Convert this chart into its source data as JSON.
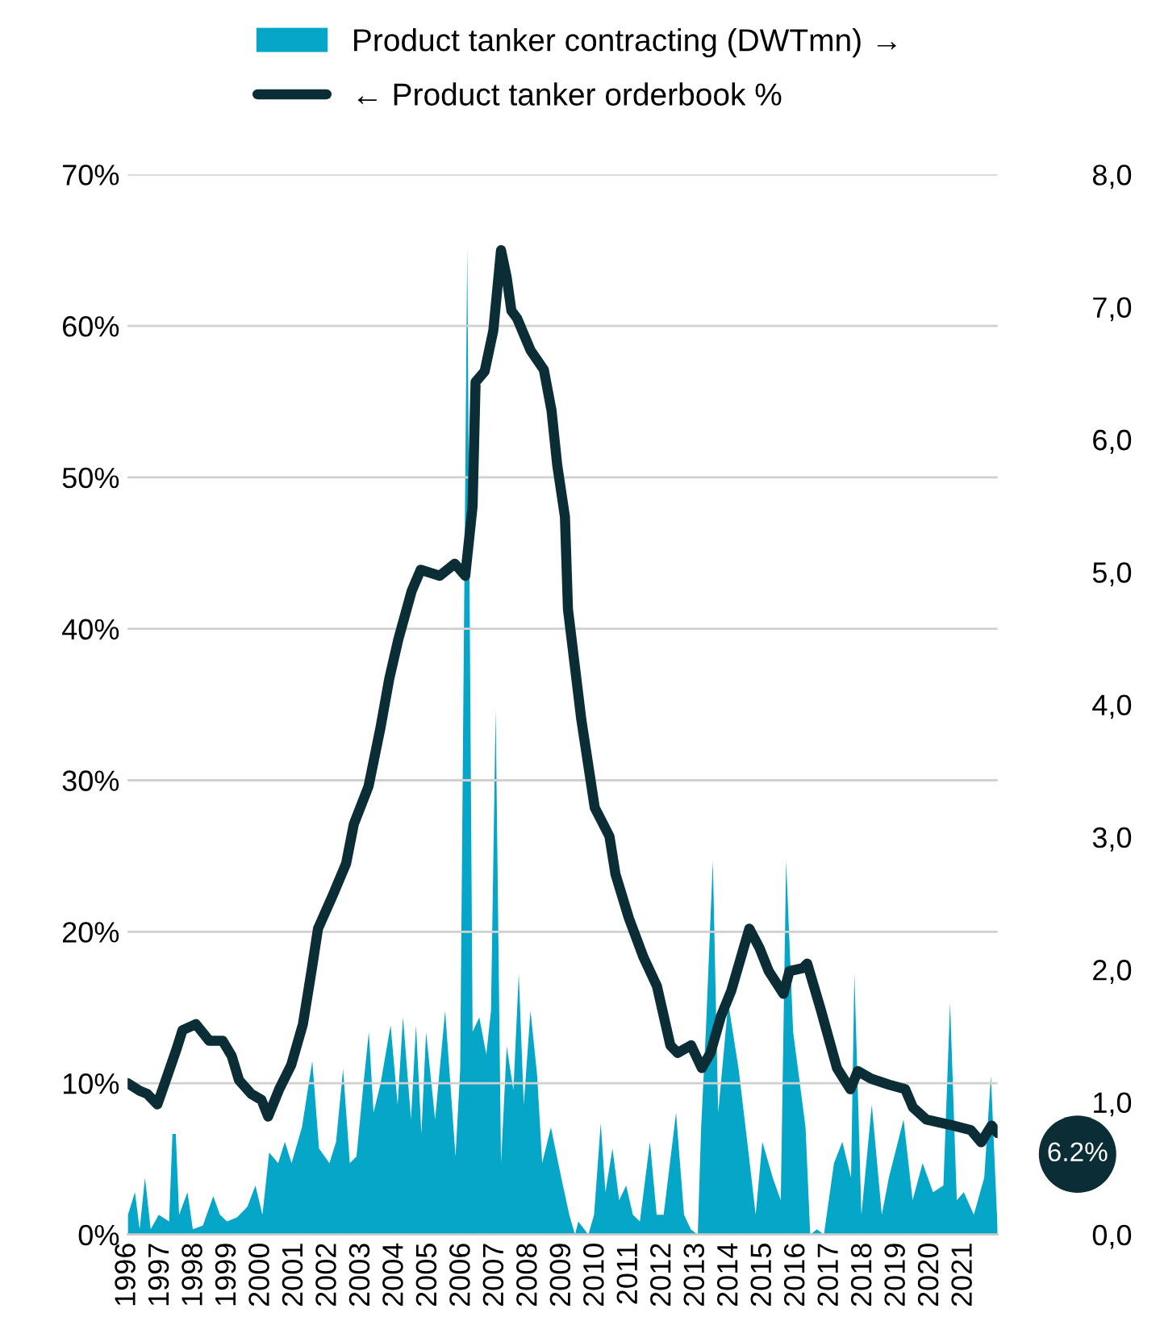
{
  "chart_data": {
    "type": "area",
    "legend": "top",
    "grid": "y",
    "xlim": [
      1996,
      2022.0
    ],
    "xticks": [
      {
        "value": 1996,
        "label": "1996"
      },
      {
        "value": 1997,
        "label": "1997"
      },
      {
        "value": 1998,
        "label": "1998"
      },
      {
        "value": 1999,
        "label": "1999"
      },
      {
        "value": 2000,
        "label": "2000"
      },
      {
        "value": 2001,
        "label": "2001"
      },
      {
        "value": 2002,
        "label": "2002"
      },
      {
        "value": 2003,
        "label": "2003"
      },
      {
        "value": 2004,
        "label": "2004"
      },
      {
        "value": 2005,
        "label": "2005"
      },
      {
        "value": 2006,
        "label": "2006"
      },
      {
        "value": 2007,
        "label": "2007"
      },
      {
        "value": 2008,
        "label": "2008"
      },
      {
        "value": 2009,
        "label": "2009"
      },
      {
        "value": 2010,
        "label": "2010"
      },
      {
        "value": 2011,
        "label": "2011"
      },
      {
        "value": 2012,
        "label": "2012"
      },
      {
        "value": 2013,
        "label": "2013"
      },
      {
        "value": 2014,
        "label": "2014"
      },
      {
        "value": 2015,
        "label": "2015"
      },
      {
        "value": 2016,
        "label": "2016"
      },
      {
        "value": 2017,
        "label": "2017"
      },
      {
        "value": 2018,
        "label": "2018"
      },
      {
        "value": 2019,
        "label": "2019"
      },
      {
        "value": 2020,
        "label": "2020"
      },
      {
        "value": 2021,
        "label": "2021"
      }
    ],
    "ylim": [
      0,
      70
    ],
    "yticks": [
      {
        "value": 0,
        "label": "0%"
      },
      {
        "value": 10,
        "label": "10%"
      },
      {
        "value": 20,
        "label": "20%"
      },
      {
        "value": 30,
        "label": "30%"
      },
      {
        "value": 40,
        "label": "40%"
      },
      {
        "value": 50,
        "label": "50%"
      },
      {
        "value": 60,
        "label": "60%"
      },
      {
        "value": 70,
        "label": "70%"
      }
    ],
    "y2lim": [
      0,
      8
    ],
    "y2ticks": [
      {
        "value": 0,
        "label": "0,0"
      },
      {
        "value": 1,
        "label": "1,0"
      },
      {
        "value": 2,
        "label": "2,0"
      },
      {
        "value": 3,
        "label": "3,0"
      },
      {
        "value": 4,
        "label": "4,0"
      },
      {
        "value": 5,
        "label": "5,0"
      },
      {
        "value": 6,
        "label": "6,0"
      },
      {
        "value": 7,
        "label": "7,0"
      },
      {
        "value": 8,
        "label": "8,0"
      }
    ],
    "annotations": [
      {
        "text": "6.2%",
        "x": 2022.0,
        "y": 6.2
      }
    ],
    "series": [
      {
        "name": "Product tanker contracting (DWTmn) →",
        "axis": "y2",
        "color": "#05a6c7",
        "x": [
          1996.01,
          1996.22,
          1996.36,
          1996.52,
          1996.69,
          1996.93,
          1997.24,
          1997.34,
          1997.44,
          1997.54,
          1997.79,
          1997.95,
          1998.25,
          1998.56,
          1998.76,
          1998.97,
          1999.27,
          1999.58,
          1999.82,
          2000.03,
          2000.23,
          2000.5,
          2000.7,
          2000.9,
          2001.21,
          2001.52,
          2001.72,
          2002.03,
          2002.23,
          2002.44,
          2002.64,
          2002.84,
          2003.05,
          2003.21,
          2003.35,
          2003.56,
          2003.86,
          2004.07,
          2004.23,
          2004.47,
          2004.62,
          2004.78,
          2004.92,
          2005.19,
          2005.49,
          2005.8,
          2005.94,
          2006.15,
          2006.31,
          2006.51,
          2006.72,
          2006.86,
          2007.0,
          2007.16,
          2007.33,
          2007.53,
          2007.69,
          2007.84,
          2008.04,
          2008.24,
          2008.39,
          2008.65,
          2008.96,
          2009.2,
          2009.37,
          2009.47,
          2009.77,
          2009.94,
          2010.14,
          2010.28,
          2010.49,
          2010.69,
          2010.9,
          2011.1,
          2011.31,
          2011.61,
          2011.81,
          2012.02,
          2012.39,
          2012.63,
          2012.83,
          2013.04,
          2013.14,
          2013.28,
          2013.49,
          2013.65,
          2013.95,
          2014.26,
          2014.57,
          2014.77,
          2014.97,
          2015.28,
          2015.52,
          2015.68,
          2015.89,
          2016.09,
          2016.26,
          2016.4,
          2016.6,
          2016.81,
          2017.11,
          2017.36,
          2017.62,
          2017.72,
          2017.93,
          2018.24,
          2018.54,
          2018.75,
          2019.19,
          2019.46,
          2019.76,
          2020.07,
          2020.38,
          2020.58,
          2020.78,
          2020.99,
          2021.29,
          2021.6,
          2021.8,
          2022.0
        ],
        "values": [
          0.15,
          0.32,
          0.04,
          0.43,
          0.04,
          0.15,
          0.1,
          0.76,
          0.76,
          0.15,
          0.32,
          0.04,
          0.07,
          0.29,
          0.15,
          0.1,
          0.13,
          0.21,
          0.37,
          0.15,
          0.62,
          0.54,
          0.7,
          0.54,
          0.81,
          1.31,
          0.65,
          0.54,
          0.7,
          1.25,
          0.54,
          0.59,
          1.14,
          1.53,
          0.92,
          1.14,
          1.58,
          0.98,
          1.64,
          0.87,
          1.58,
          0.76,
          1.53,
          0.87,
          1.69,
          0.59,
          1.25,
          7.45,
          1.53,
          1.64,
          1.36,
          1.69,
          3.96,
          0.54,
          1.42,
          1.09,
          1.97,
          0.98,
          1.69,
          1.2,
          0.54,
          0.81,
          0.43,
          0.15,
          0,
          0.1,
          0,
          0.15,
          0.84,
          0.32,
          0.65,
          0.26,
          0.37,
          0.15,
          0.1,
          0.7,
          0.15,
          0.15,
          0.92,
          0.15,
          0.04,
          0,
          0.81,
          1.53,
          2.82,
          0.92,
          1.75,
          1.25,
          0.59,
          0.15,
          0.7,
          0.43,
          0.26,
          2.82,
          1.53,
          1.14,
          0.81,
          0,
          0.04,
          0,
          0.54,
          0.7,
          0.43,
          1.97,
          0.15,
          0.98,
          0.15,
          0.43,
          0.87,
          0.26,
          0.54,
          0.32,
          0.37,
          1.75,
          0.26,
          0.32,
          0.15,
          0.43,
          1.2,
          0.04
        ]
      },
      {
        "name": "← Product tanker orderbook %",
        "type": "line",
        "axis": "y",
        "color": "#0b2d35",
        "line_style": "solid",
        "marker": "none",
        "x": [
          1996.0,
          1996.36,
          1996.58,
          1996.89,
          1997.11,
          1997.47,
          1997.64,
          1998.04,
          1998.44,
          1998.84,
          1999.11,
          1999.33,
          1999.69,
          2000.0,
          2000.2,
          2000.53,
          2000.89,
          2001.24,
          2001.51,
          2001.69,
          2002.13,
          2002.53,
          2002.76,
          2003.2,
          2003.56,
          2003.82,
          2004.09,
          2004.49,
          2004.76,
          2005.33,
          2005.78,
          2006.09,
          2006.31,
          2006.4,
          2006.67,
          2006.93,
          2007.16,
          2007.33,
          2007.47,
          2007.64,
          2008.04,
          2008.44,
          2008.67,
          2008.84,
          2009.07,
          2009.16,
          2009.56,
          2009.96,
          2010.4,
          2010.58,
          2010.98,
          2011.42,
          2011.82,
          2012.22,
          2012.44,
          2012.84,
          2013.16,
          2013.42,
          2013.73,
          2014.04,
          2014.58,
          2014.89,
          2015.16,
          2015.6,
          2015.78,
          2016.18,
          2016.31,
          2016.71,
          2017.2,
          2017.6,
          2017.82,
          2018.22,
          2018.76,
          2019.24,
          2019.47,
          2019.87,
          2020.67,
          2021.2,
          2021.51,
          2021.82,
          2022.0
        ],
        "values": [
          10.0,
          9.5,
          9.3,
          8.6,
          10.0,
          12.3,
          13.5,
          13.9,
          12.8,
          12.8,
          11.8,
          10.2,
          9.3,
          8.9,
          7.8,
          9.6,
          11.2,
          13.9,
          17.6,
          20.2,
          22.4,
          24.5,
          27.1,
          29.6,
          33.5,
          36.7,
          39.3,
          42.5,
          43.9,
          43.5,
          44.3,
          43.5,
          48.1,
          56.3,
          57.0,
          59.7,
          65.0,
          63.2,
          61.0,
          60.5,
          58.4,
          57.1,
          54.4,
          50.8,
          47.4,
          41.3,
          34.0,
          28.2,
          26.3,
          23.8,
          20.9,
          18.3,
          16.4,
          12.5,
          12.0,
          12.5,
          11.0,
          12.0,
          14.4,
          16.1,
          20.2,
          18.9,
          17.4,
          15.9,
          17.4,
          17.6,
          17.9,
          14.9,
          11.0,
          9.6,
          10.8,
          10.3,
          9.9,
          9.6,
          8.4,
          7.6,
          7.2,
          6.9,
          6.1,
          7.2,
          6.7
        ]
      }
    ]
  }
}
